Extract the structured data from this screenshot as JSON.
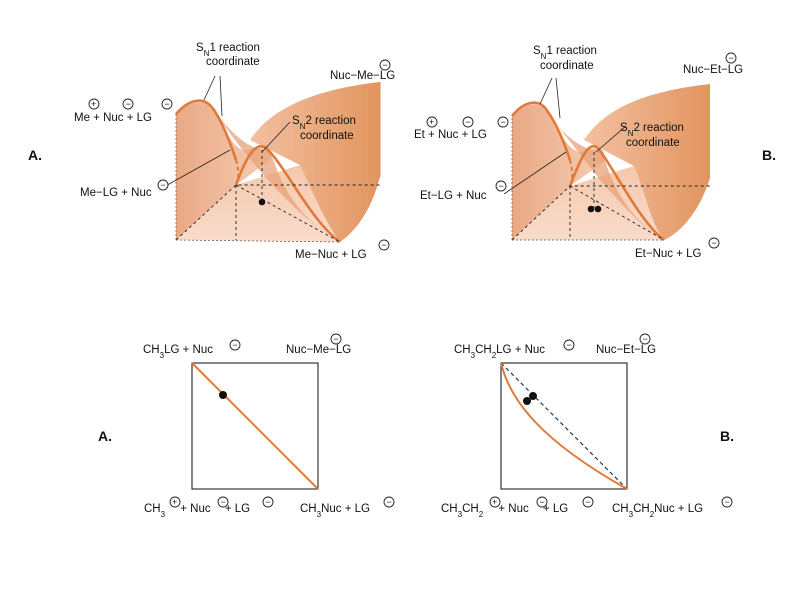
{
  "panel_labels": {
    "top_left": "A.",
    "top_right": "B.",
    "bottom_left": "A.",
    "bottom_right": "B."
  },
  "top_left": {
    "sn1_label_line1": "SN1 reaction",
    "sn1_label_line2": "coordinate",
    "sn2_label_line1": "SN2 reaction",
    "sn2_label_line2": "coordinate",
    "corner_top_left": "Me + Nuc + LG",
    "corner_top_right": "Nuc−Me−LG",
    "corner_start": "Me−LG + Nuc",
    "corner_product": "Me−Nuc + LG"
  },
  "top_right": {
    "sn1_label_line1": "SN1 reaction",
    "sn1_label_line2": "coordinate",
    "sn2_label_line1": "SN2 reaction",
    "sn2_label_line2": "coordinate",
    "corner_top_left": "Et + Nuc + LG",
    "corner_top_right": "Nuc−Et−LG",
    "corner_start": "Et−LG + Nuc",
    "corner_product": "Et−Nuc + LG"
  },
  "bottom_left": {
    "top_left": "CH3LG + Nuc",
    "top_right": "Nuc−Me−LG",
    "bottom_left": "CH3 + Nuc + LG",
    "bottom_right": "CH3Nuc + LG"
  },
  "bottom_right": {
    "top_left": "CH3CH2LG + Nuc",
    "top_right": "Nuc−Et−LG",
    "bottom_left": "CH3CH2 + Nuc + LG",
    "bottom_right": "CH3CH2Nuc + LG"
  },
  "charges": {
    "minus": "−",
    "plus": "+"
  },
  "colors": {
    "surface_light": "#f7d3bd",
    "surface_mid": "#eeb391",
    "surface_dark": "#d98a5e",
    "path_orange": "#e07a3a",
    "dashed_line": "#222222"
  }
}
